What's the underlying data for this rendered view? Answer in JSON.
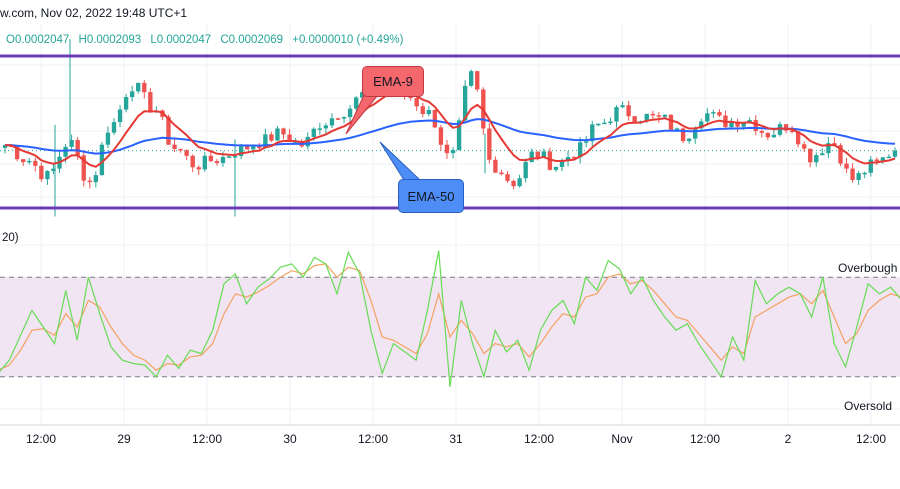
{
  "header": {
    "source_date": "w.com, Nov 02, 2022 19:48 UTC+1",
    "open": "O0.0002047",
    "high": "H0.0002093",
    "low": "L0.0002047",
    "close": "C0.0002069",
    "change": "+0.0000010 (+0.49%)"
  },
  "oscillator": {
    "label": "20)",
    "overbought_label": "Overbough",
    "oversold_label": "Oversold"
  },
  "annotations": {
    "ema9": "EMA-9",
    "ema50": "EMA-50"
  },
  "x_axis": {
    "ticks": [
      "12:00",
      "29",
      "12:00",
      "30",
      "12:00",
      "31",
      "12:00",
      "Nov",
      "12:00",
      "2",
      "12:00"
    ]
  },
  "colors": {
    "bull": "#26a69a",
    "bear": "#ef5350",
    "ema9": "#e53935",
    "ema50": "#2962ff",
    "channel": "#6a3db8",
    "osc_fast": "#66dd55",
    "osc_slow": "#f4a261",
    "osc_band": "#f1e4f3"
  },
  "chart_data": [
    {
      "type": "candlestick",
      "x": [
        "12:00",
        "29",
        "12:00",
        "30",
        "12:00",
        "31",
        "12:00",
        "Nov",
        "12:00",
        "2",
        "12:00"
      ],
      "price_close_path": [
        2071,
        2066,
        2060,
        2072,
        2058,
        2078,
        2092,
        2084,
        2070,
        2064,
        2066,
        2069,
        2072,
        2075,
        2071,
        2079,
        2083,
        2089,
        2094,
        2088,
        2082,
        2066,
        2095,
        2064,
        2058,
        2068,
        2064,
        2069,
        2078,
        2083,
        2081,
        2080,
        2074,
        2082,
        2079,
        2080,
        2075,
        2078,
        2067,
        2072,
        2059,
        2064,
        2069
      ],
      "ohlc_last": {
        "open": 0.0002047,
        "high": 0.0002093,
        "low": 0.0002047,
        "close": 0.0002069
      },
      "indicators": [
        {
          "name": "EMA-9",
          "color": "#e53935"
        },
        {
          "name": "EMA-50",
          "color": "#2962ff"
        }
      ]
    },
    {
      "type": "line",
      "levels": {
        "overbought": 80,
        "oversold": 20
      },
      "ylim": [
        0,
        100
      ],
      "series": [
        {
          "values": [
            22,
            30,
            45,
            60,
            50,
            40,
            72,
            42,
            80,
            58,
            38,
            30,
            28,
            27,
            20,
            33,
            25,
            36,
            34,
            48,
            76,
            82,
            64,
            74,
            79,
            86,
            88,
            80,
            92,
            88,
            70,
            95,
            82,
            48,
            22,
            40,
            35,
            30,
            60,
            96,
            14,
            66,
            40,
            20,
            48,
            35,
            42,
            24,
            48,
            60,
            66,
            52,
            80,
            72,
            90,
            85,
            70,
            80,
            66,
            56,
            48,
            52,
            40,
            30,
            20,
            44,
            30,
            78,
            64,
            70,
            74,
            70,
            56,
            80,
            40,
            26,
            50,
            76,
            70,
            74,
            66
          ]
        },
        {
          "values": [
            24,
            27,
            36,
            48,
            49,
            45,
            58,
            50,
            66,
            62,
            50,
            40,
            33,
            30,
            24,
            28,
            27,
            32,
            33,
            40,
            58,
            70,
            68,
            71,
            75,
            80,
            84,
            82,
            87,
            88,
            80,
            86,
            84,
            66,
            44,
            42,
            38,
            34,
            46,
            70,
            44,
            54,
            46,
            34,
            40,
            38,
            40,
            32,
            40,
            50,
            58,
            56,
            68,
            70,
            80,
            82,
            76,
            78,
            72,
            64,
            56,
            54,
            46,
            38,
            30,
            38,
            34,
            56,
            60,
            64,
            68,
            70,
            64,
            72,
            56,
            40,
            46,
            60,
            66,
            70,
            68
          ]
        }
      ]
    }
  ]
}
